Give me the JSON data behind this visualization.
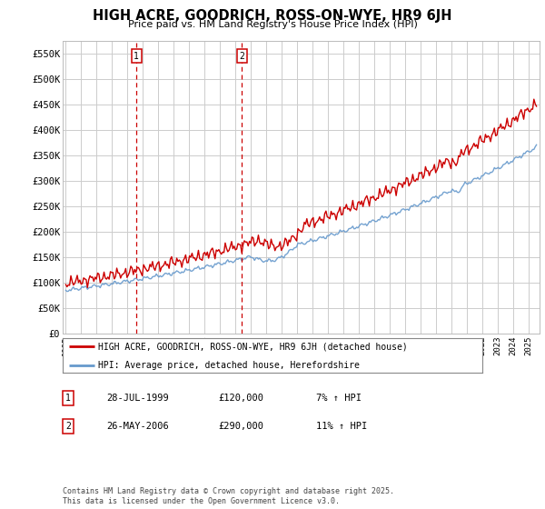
{
  "title": "HIGH ACRE, GOODRICH, ROSS-ON-WYE, HR9 6JH",
  "subtitle": "Price paid vs. HM Land Registry's House Price Index (HPI)",
  "ylim": [
    0,
    575000
  ],
  "yticks": [
    0,
    50000,
    100000,
    150000,
    200000,
    250000,
    300000,
    350000,
    400000,
    450000,
    500000,
    550000
  ],
  "ytick_labels": [
    "£0",
    "£50K",
    "£100K",
    "£150K",
    "£200K",
    "£250K",
    "£300K",
    "£350K",
    "£400K",
    "£450K",
    "£500K",
    "£550K"
  ],
  "sale1_date": "28-JUL-1999",
  "sale1_price": 120000,
  "sale1_hpi": "7%",
  "sale2_date": "26-MAY-2006",
  "sale2_price": 290000,
  "sale2_hpi": "11%",
  "legend_line1": "HIGH ACRE, GOODRICH, ROSS-ON-WYE, HR9 6JH (detached house)",
  "legend_line2": "HPI: Average price, detached house, Herefordshire",
  "footer": "Contains HM Land Registry data © Crown copyright and database right 2025.\nThis data is licensed under the Open Government Licence v3.0.",
  "line_color_red": "#cc0000",
  "line_color_blue": "#6699cc",
  "vline_color": "#cc0000",
  "plot_bg": "#ffffff",
  "grid_color": "#cccccc",
  "vline1_x": 1999.583,
  "vline2_x": 2006.417,
  "xlim_left": 1994.8,
  "xlim_right": 2025.7
}
